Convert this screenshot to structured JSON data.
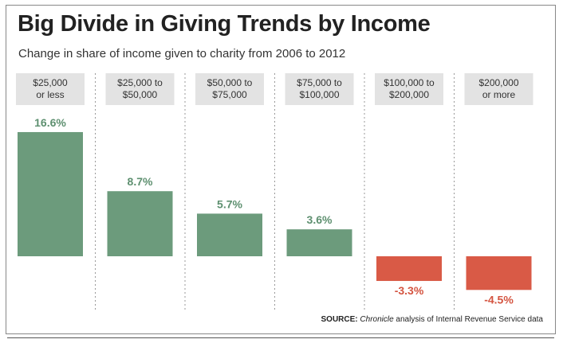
{
  "title": "Big Divide in Giving Trends by Income",
  "subtitle": "Change in share of income given to charity from 2006 to 2012",
  "source": {
    "label": "SOURCE:",
    "publication": "Chronicle",
    "rest": " analysis of Internal Revenue Service data"
  },
  "colors": {
    "positive": "#6c9b7c",
    "negative": "#d95a46",
    "positive_text": "#5e9070",
    "negative_text": "#d45440",
    "label_box": "#e3e3e3"
  },
  "chart_data": {
    "type": "bar",
    "title": "Big Divide in Giving Trends by Income",
    "subtitle": "Change in share of income given to charity from 2006 to 2012",
    "categories": [
      [
        "$25,000",
        "or less"
      ],
      [
        "$25,000 to",
        "$50,000"
      ],
      [
        "$50,000 to",
        "$75,000"
      ],
      [
        "$75,000 to",
        "$100,000"
      ],
      [
        "$100,000 to",
        "$200,000"
      ],
      [
        "$200,000",
        "or more"
      ]
    ],
    "values": [
      16.6,
      8.7,
      5.7,
      3.6,
      -3.3,
      -4.5
    ],
    "value_labels": [
      "16.6%",
      "8.7%",
      "5.7%",
      "3.6%",
      "-3.3%",
      "-4.5%"
    ],
    "unit": "%",
    "xlabel": "",
    "ylabel": "",
    "grid": false,
    "legend": "none"
  }
}
